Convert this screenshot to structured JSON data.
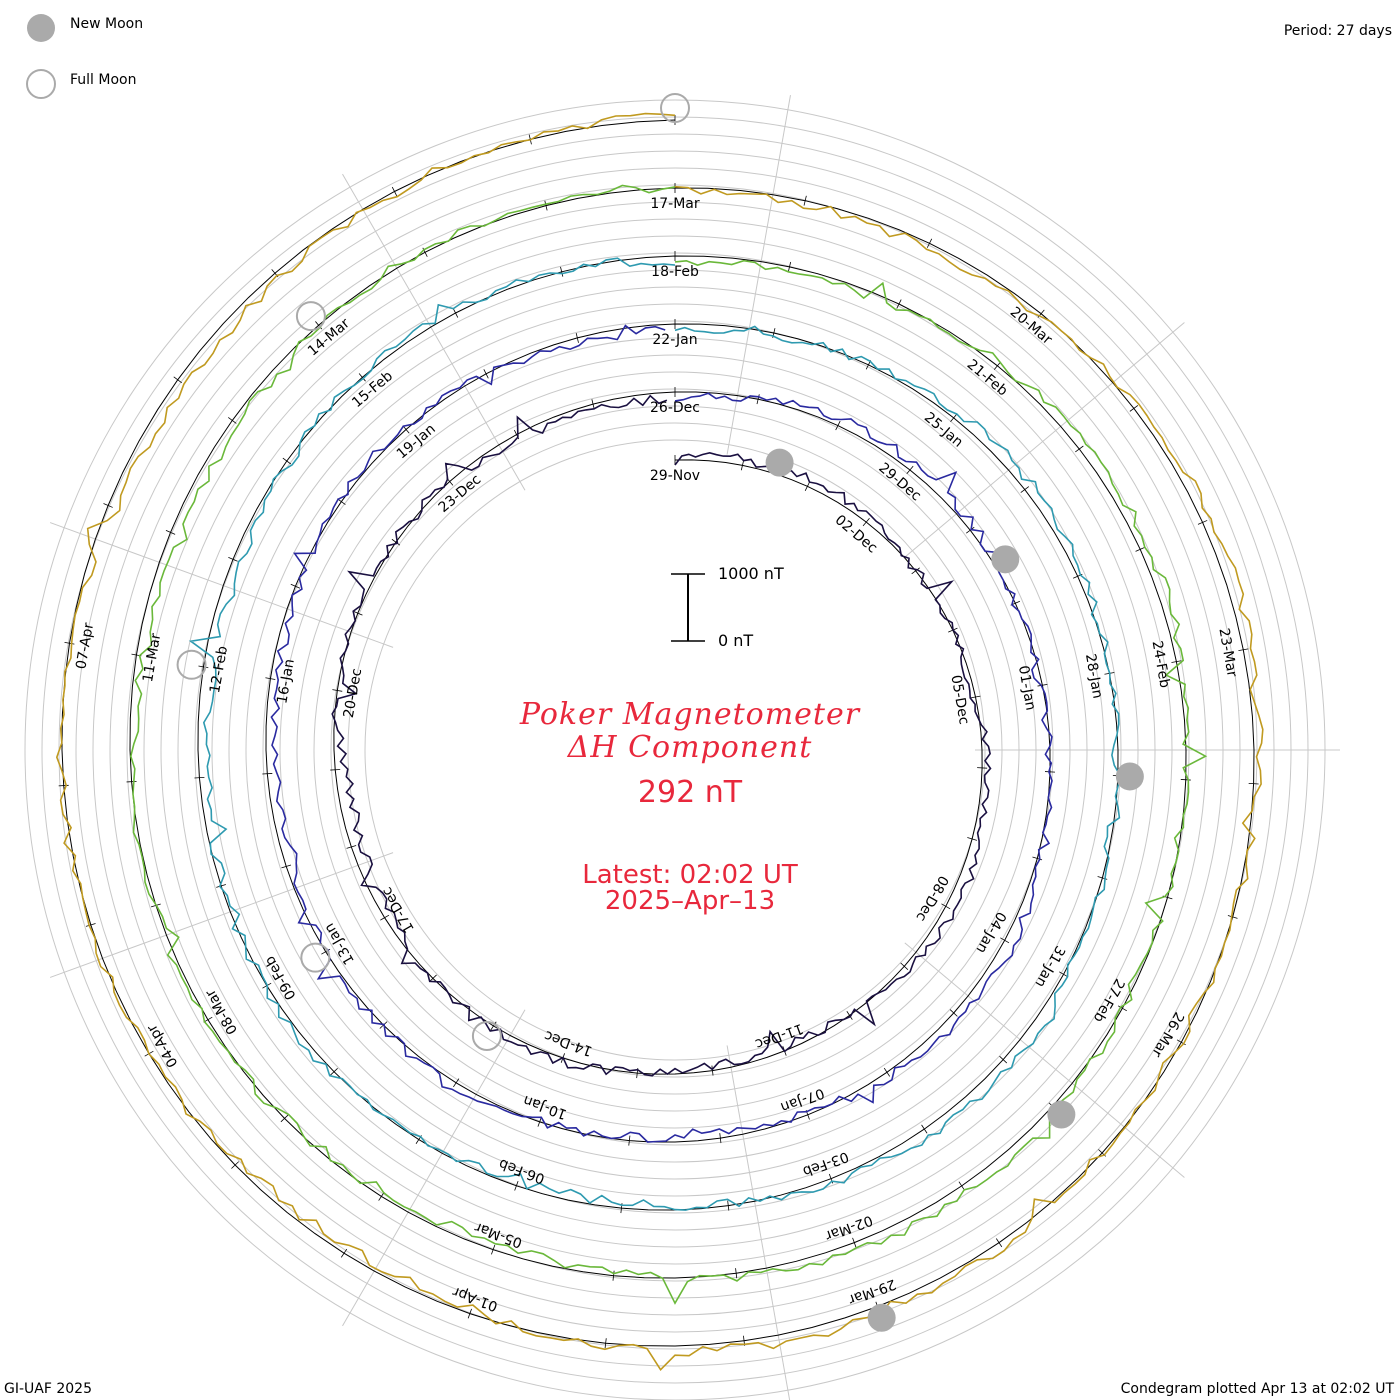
{
  "chart_data": {
    "type": "condegram",
    "title_line1": "Poker Magnetometer",
    "title_line2": "ΔH Component",
    "current_value": "292 nT",
    "latest_time": "Latest: 02:02 UT",
    "latest_date": "2025–Apr–13",
    "period": "Period: 27 days",
    "credit": "GI-UAF 2025",
    "plotted": "Condegram plotted Apr 13 at 02:02 UT",
    "scale_top": "1000 nT",
    "scale_bottom": "0 nT",
    "legend": [
      {
        "symbol": "new-moon",
        "label": "New Moon"
      },
      {
        "symbol": "full-moon",
        "label": "Full Moon"
      }
    ],
    "start_date": "29-Nov",
    "end_date": "13-Apr",
    "rotations": [
      {
        "index": 1,
        "color": "#1a1040",
        "dates": [
          "29-Nov",
          "02-Dec",
          "05-Dec",
          "08-Dec",
          "11-Dec",
          "14-Dec",
          "17-Dec",
          "20-Dec",
          "23-Dec"
        ]
      },
      {
        "index": 2,
        "color": "#2a2aa0",
        "dates": [
          "26-Dec",
          "29-Dec",
          "01-Jan",
          "04-Jan",
          "07-Jan",
          "10-Jan",
          "13-Jan",
          "16-Jan",
          "19-Jan"
        ]
      },
      {
        "index": 3,
        "color": "#2e9ab0",
        "dates": [
          "22-Jan",
          "25-Jan",
          "28-Jan",
          "31-Jan",
          "03-Feb",
          "06-Feb",
          "09-Feb",
          "12-Feb",
          "15-Feb"
        ]
      },
      {
        "index": 4,
        "color": "#6ab83a",
        "dates": [
          "18-Feb",
          "21-Feb",
          "24-Feb",
          "27-Feb",
          "02-Mar",
          "05-Mar",
          "08-Mar",
          "11-Mar",
          "14-Mar"
        ]
      },
      {
        "index": 5,
        "color": "#c09a20",
        "dates": [
          "17-Mar",
          "20-Mar",
          "23-Mar",
          "26-Mar",
          "29-Mar",
          "01-Apr",
          "04-Apr",
          "07-Apr"
        ]
      },
      {
        "index": 6,
        "color": "#c01818",
        "dates": []
      }
    ],
    "new_moons": [
      "30-Nov",
      "30-Dec",
      "29-Jan",
      "28-Feb",
      "29-Mar"
    ],
    "full_moons": [
      "15-Dec",
      "13-Jan",
      "12-Feb",
      "14-Mar",
      "13-Apr"
    ],
    "grid": true
  }
}
